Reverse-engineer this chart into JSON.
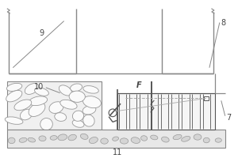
{
  "bg_color": "#ffffff",
  "line_color": "#888888",
  "dark_color": "#555555",
  "text_color": "#444444",
  "label_9": "9",
  "label_8": "8",
  "label_10": "10",
  "label_11": "11",
  "label_7": "7",
  "label_F": "F",
  "fig_width": 3.0,
  "fig_height": 2.0
}
